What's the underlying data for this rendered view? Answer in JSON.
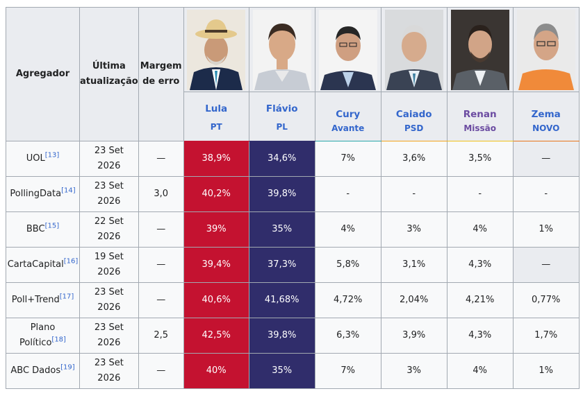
{
  "header": {
    "aggregator": "Agregador",
    "last_update_line1": "Última",
    "last_update_line2": "atualização",
    "margin_line1": "Margem",
    "margin_line2": "de erro"
  },
  "candidates": [
    {
      "name": "Lula",
      "party": "PT",
      "color": "#c41230",
      "name_color": "#3366cc"
    },
    {
      "name": "Flávio",
      "party": "PL",
      "color": "#302d6b",
      "name_color": "#3366cc"
    },
    {
      "name": "Cury",
      "party": "Avante",
      "color": "#2aa7a9",
      "name_color": "#3366cc"
    },
    {
      "name": "Caiado",
      "party": "PSD",
      "color": "#f2a31b",
      "name_color": "#3366cc"
    },
    {
      "name": "Renan",
      "party": "Missão",
      "color": "#f0c01a",
      "name_color": "#6b4ba1"
    },
    {
      "name": "Zema",
      "party": "NOVO",
      "color": "#e8751a",
      "name_color": "#3366cc"
    }
  ],
  "rows": [
    {
      "src": "UOL",
      "ref": "[13]",
      "src2": "",
      "d1": "23 Set",
      "d2": "2026",
      "margin": "—",
      "v": [
        "38,9%",
        "34,6%",
        "7%",
        "3,6%",
        "3,5%",
        "—"
      ]
    },
    {
      "src": "PollingData",
      "ref": "[14]",
      "src2": "",
      "d1": "23 Set",
      "d2": "2026",
      "margin": "3,0",
      "v": [
        "40,2%",
        "39,8%",
        "-",
        "-",
        "-",
        "-"
      ]
    },
    {
      "src": "BBC",
      "ref": "[15]",
      "src2": "",
      "d1": "22 Set",
      "d2": "2026",
      "margin": "—",
      "v": [
        "39%",
        "35%",
        "4%",
        "3%",
        "4%",
        "1%"
      ]
    },
    {
      "src": "CartaCapital",
      "ref": "[16]",
      "src2": "",
      "d1": "19 Set",
      "d2": "2026",
      "margin": "—",
      "v": [
        "39,4%",
        "37,3%",
        "5,8%",
        "3,1%",
        "4,3%",
        "—"
      ]
    },
    {
      "src": "Poll+Trend",
      "ref": "[17]",
      "src2": "",
      "d1": "23 Set",
      "d2": "2026",
      "margin": "—",
      "v": [
        "40,6%",
        "41,68%",
        "4,72%",
        "2,04%",
        "4,21%",
        "0,77%"
      ]
    },
    {
      "src": "Plano",
      "ref": "[18]",
      "src2": "Político",
      "d1": "23 Set",
      "d2": "2026",
      "margin": "2,5",
      "v": [
        "42,5%",
        "39,8%",
        "6,3%",
        "3,9%",
        "4,3%",
        "1,7%"
      ]
    },
    {
      "src": "ABC Dados",
      "ref": "[19]",
      "src2": "",
      "d1": "23 Set",
      "d2": "2026",
      "margin": "—",
      "v": [
        "40%",
        "35%",
        "7%",
        "3%",
        "4%",
        "1%"
      ]
    }
  ]
}
